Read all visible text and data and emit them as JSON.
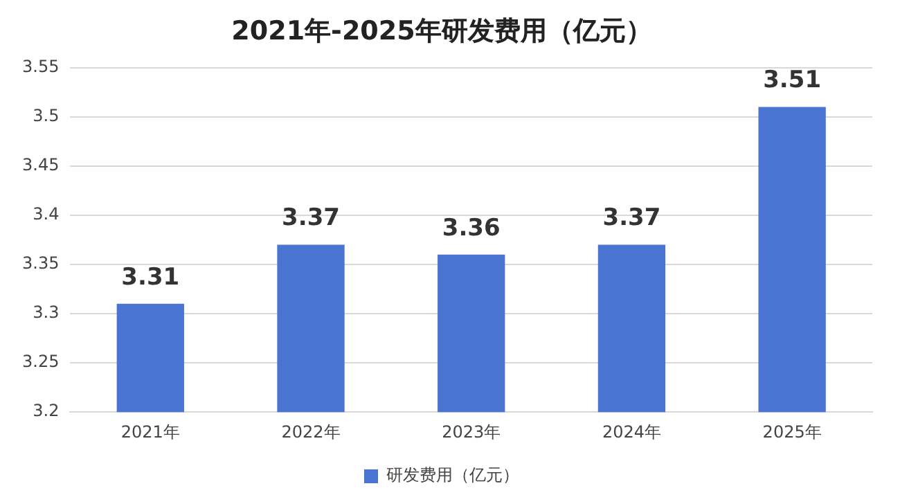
{
  "chart_data": {
    "type": "bar",
    "title": "2021年-2025年研发费用（亿元）",
    "categories": [
      "2021年",
      "2022年",
      "2023年",
      "2024年",
      "2025年"
    ],
    "series": [
      {
        "name": "研发费用（亿元）",
        "color": "#4a74d2",
        "values": [
          3.31,
          3.37,
          3.36,
          3.37,
          3.51
        ]
      }
    ],
    "ylim": [
      3.2,
      3.55
    ],
    "yticks": [
      3.2,
      3.25,
      3.3,
      3.35,
      3.4,
      3.45,
      3.5,
      3.55
    ],
    "grid": "y",
    "legend": "bottom",
    "data_labels": true
  }
}
